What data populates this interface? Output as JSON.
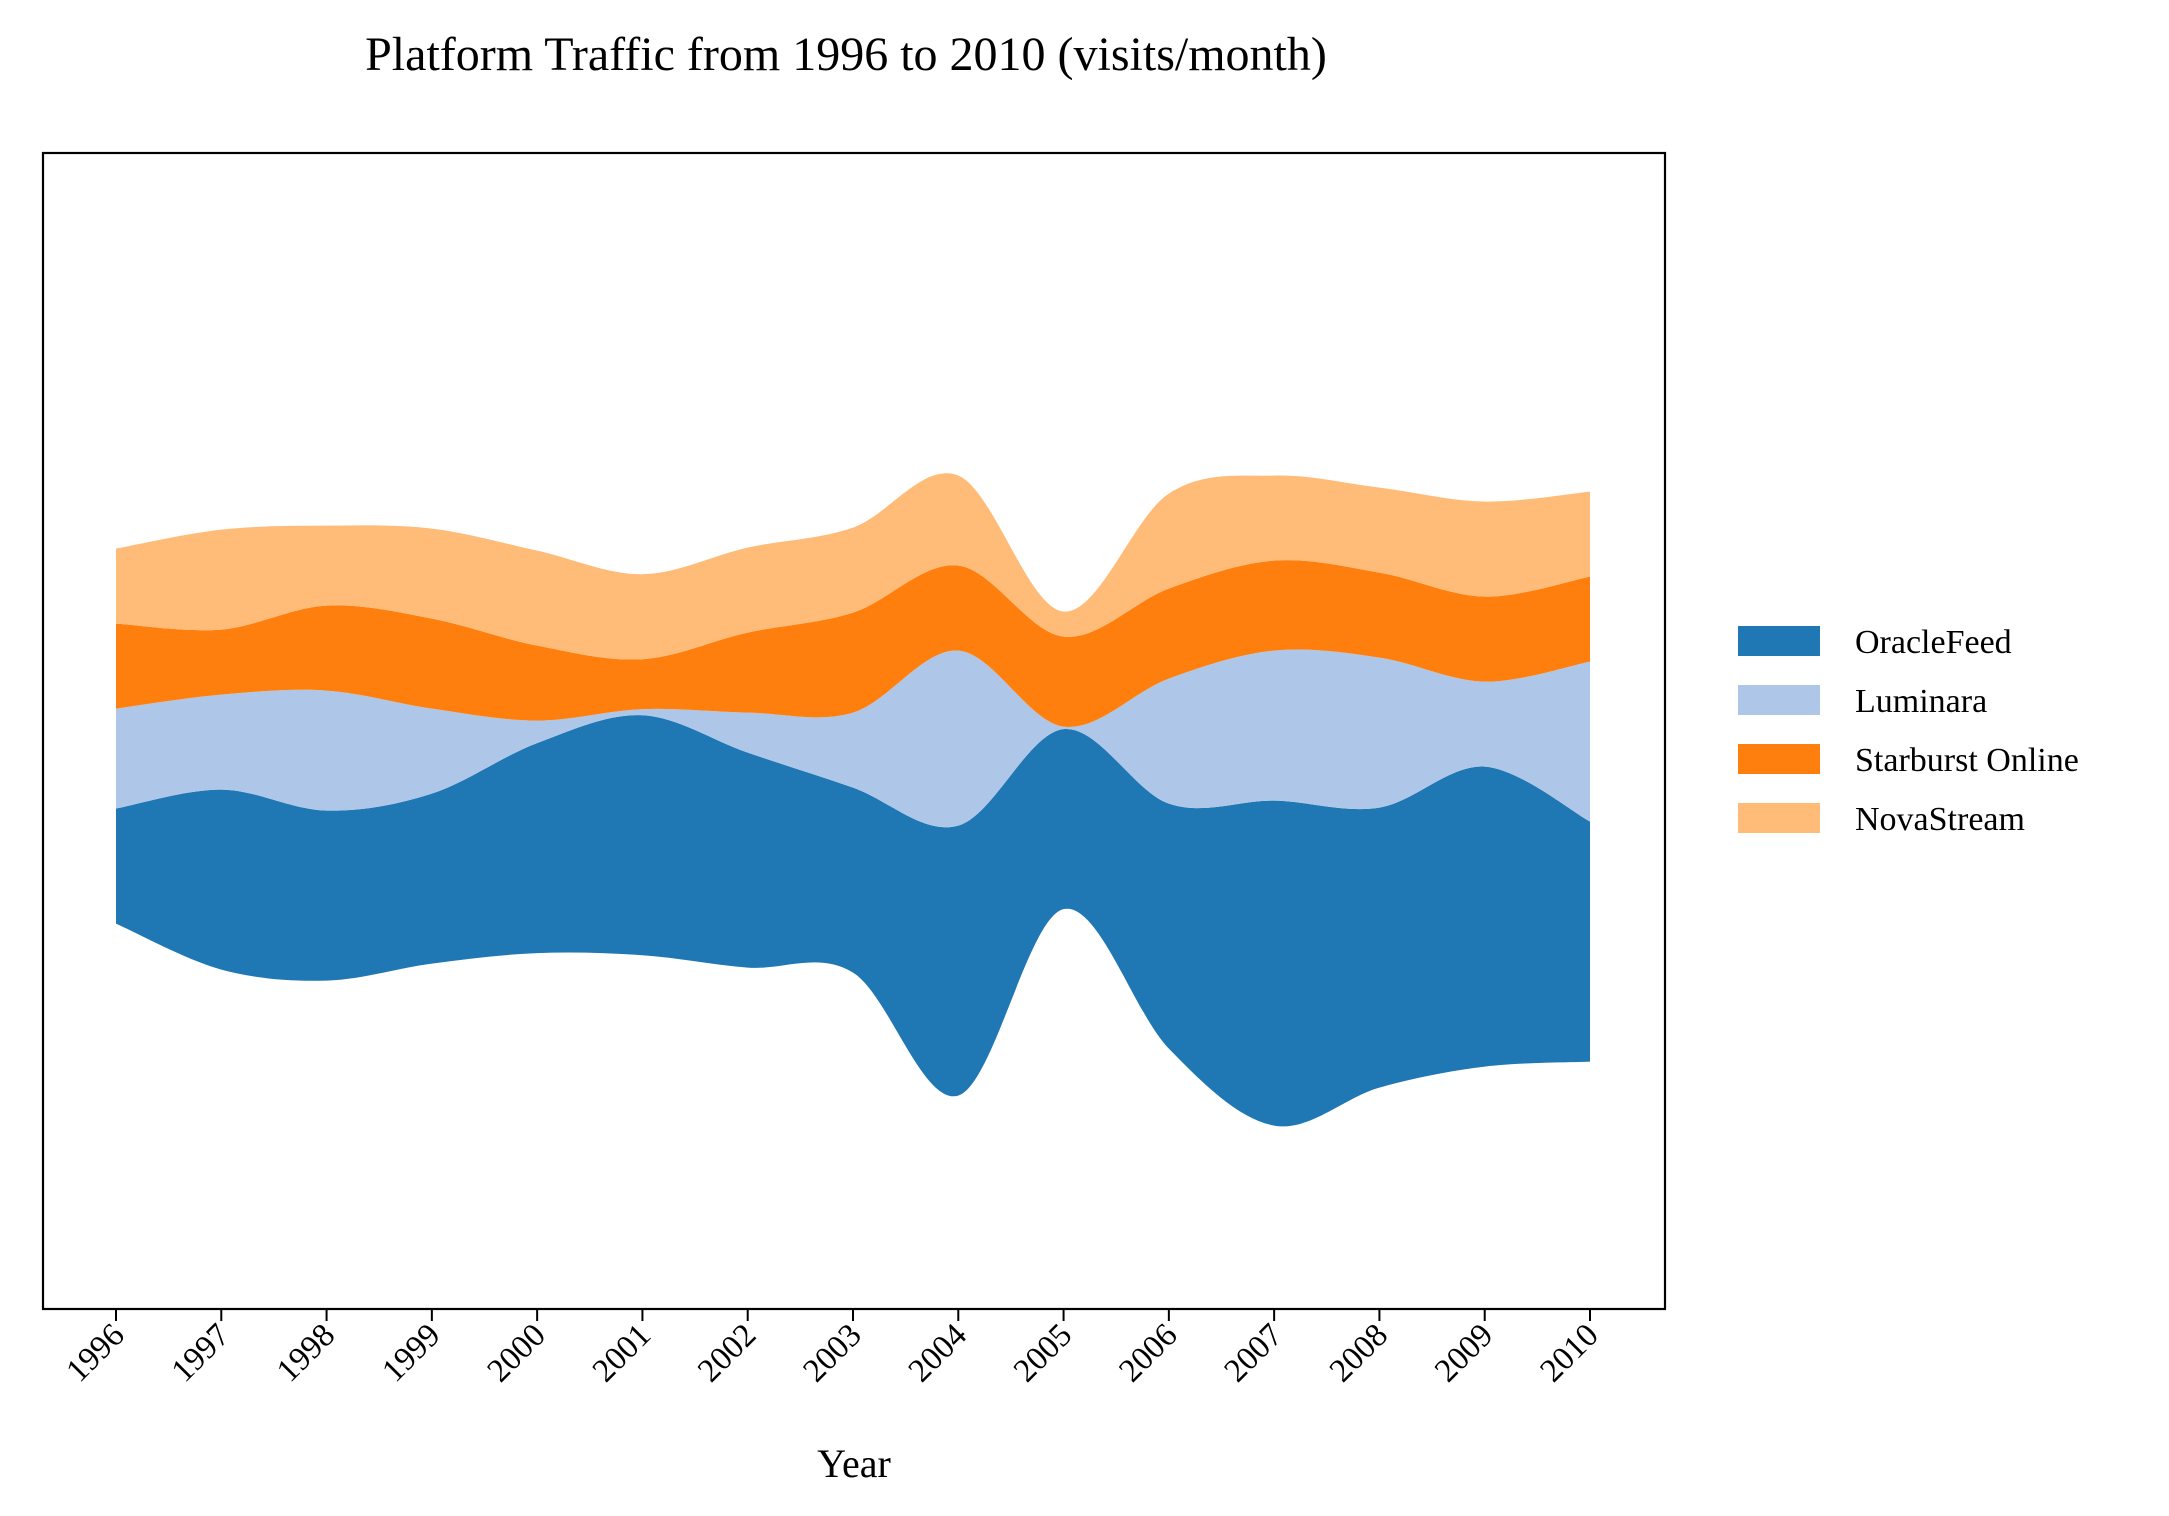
{
  "chart_data": {
    "type": "area",
    "subtype": "streamgraph",
    "title": "Platform Traffic from 1996 to 2010 (visits/month)",
    "xlabel": "Year",
    "ylabel": "",
    "x": [
      "1996",
      "1997",
      "1998",
      "1999",
      "2000",
      "2001",
      "2002",
      "2003",
      "2004",
      "2005",
      "2006",
      "2007",
      "2008",
      "2009",
      "2010"
    ],
    "series": [
      {
        "name": "OracleFeed",
        "color": "#1f77b4",
        "values": [
          2300,
          3600,
          3400,
          3400,
          4200,
          4800,
          4300,
          3700,
          5400,
          3600,
          4900,
          6500,
          5600,
          6000,
          4800
        ]
      },
      {
        "name": "Luminara",
        "color": "#aec7e8",
        "values": [
          2000,
          1900,
          2400,
          1700,
          450,
          120,
          800,
          1500,
          3500,
          50,
          2500,
          3000,
          3000,
          1700,
          3200
        ]
      },
      {
        "name": "Starburst Online",
        "color": "#ff7f0e",
        "values": [
          1700,
          1300,
          1700,
          1800,
          1500,
          1000,
          1600,
          2000,
          1700,
          1800,
          1800,
          1800,
          1700,
          1700,
          1700
        ]
      },
      {
        "name": "NovaStream",
        "color": "#ffbb78",
        "values": [
          1500,
          2000,
          1600,
          1800,
          1900,
          1700,
          1700,
          1700,
          1800,
          500,
          1900,
          1700,
          1700,
          1900,
          1700
        ]
      }
    ],
    "baseline": "wiggle",
    "yticks": "none",
    "grid": false,
    "legend": "right, outside plot"
  }
}
